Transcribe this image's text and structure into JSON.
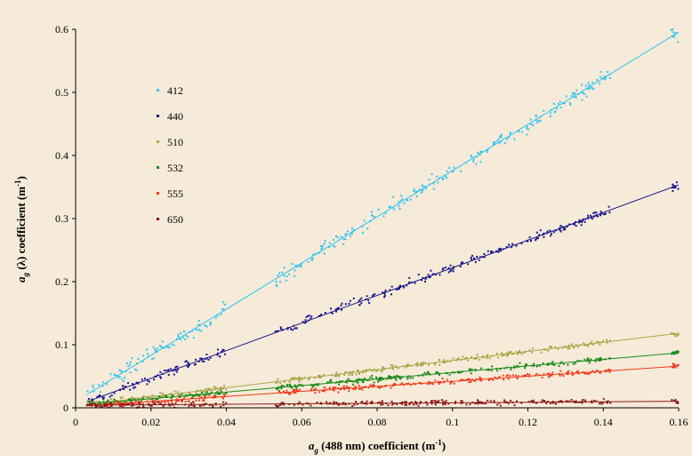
{
  "chart_data": {
    "type": "scatter",
    "xlabel": {
      "prefix": "a",
      "sub": "g",
      "middle": " (488 nm) coefficient (m",
      "sup": "-1",
      "suffix": ")"
    },
    "ylabel": {
      "prefix": "a",
      "sub": "g",
      "middle": " (λ) coefficient (m",
      "sup": "-1",
      "suffix": ")"
    },
    "xlim": [
      0,
      0.16
    ],
    "ylim": [
      0,
      0.6
    ],
    "xticks": [
      0,
      0.02,
      0.04,
      0.06,
      0.08,
      0.1,
      0.12,
      0.14,
      0.16
    ],
    "xtick_labels": [
      "0",
      "0.02",
      "0.04",
      "0.06",
      "0.08",
      "0.1",
      "0.12",
      "0.14",
      "0.16"
    ],
    "yticks": [
      0,
      0.1,
      0.2,
      0.3,
      0.4,
      0.5,
      0.6
    ],
    "ytick_labels": [
      "0",
      "0.1",
      "0.2",
      "0.3",
      "0.4",
      "0.5",
      "0.6"
    ],
    "grid": false,
    "legend_position": "upper-left",
    "x_coverage": [
      [
        0.003,
        0.04
      ],
      [
        0.053,
        0.142
      ],
      [
        0.158,
        0.16
      ]
    ],
    "series": [
      {
        "name": "412",
        "color": "#33c5f0",
        "fit": {
          "slope": 3.66,
          "intercept": 0.01
        },
        "scatter": 0.012
      },
      {
        "name": "440",
        "color": "#1a1a8c",
        "fit": {
          "slope": 2.19,
          "intercept": 0.003
        },
        "scatter": 0.007
      },
      {
        "name": "510",
        "color": "#a8a84a",
        "fit": {
          "slope": 0.72,
          "intercept": 0.003
        },
        "scatter": 0.004
      },
      {
        "name": "532",
        "color": "#1a8a1a",
        "fit": {
          "slope": 0.52,
          "intercept": 0.004
        },
        "scatter": 0.004
      },
      {
        "name": "555",
        "color": "#f03a1a",
        "fit": {
          "slope": 0.4,
          "intercept": 0.002
        },
        "scatter": 0.004
      },
      {
        "name": "650",
        "color": "#8b1a1a",
        "fit": {
          "slope": 0.04,
          "intercept": 0.004
        },
        "scatter": 0.004
      }
    ]
  }
}
